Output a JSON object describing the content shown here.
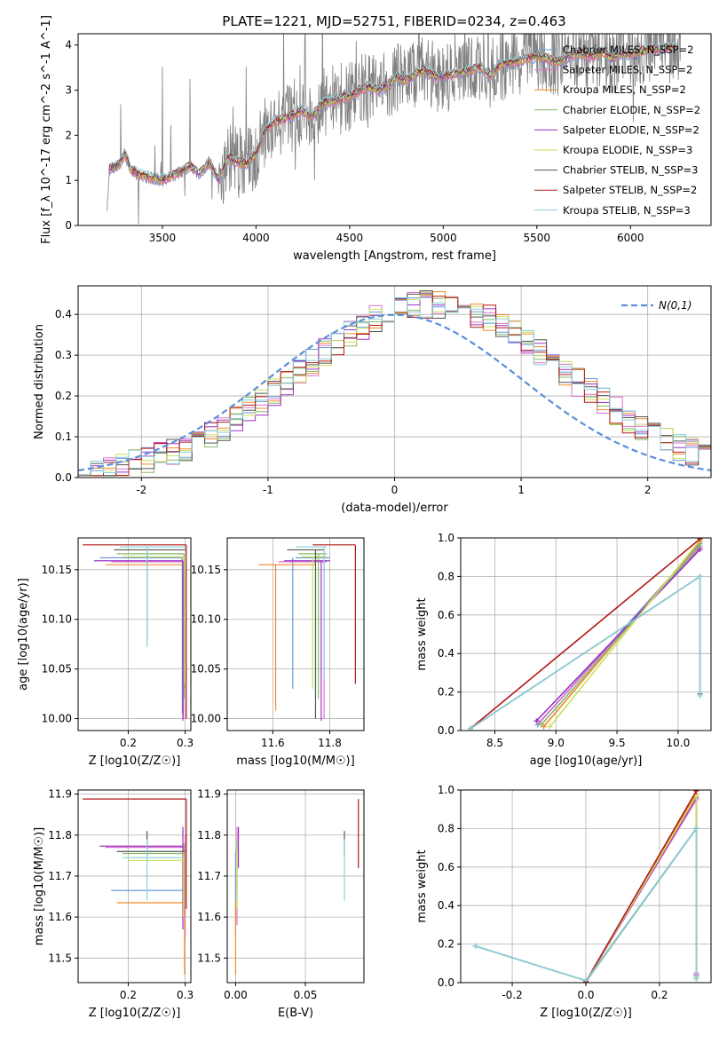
{
  "figure": {
    "title": "PLATE=1221, MJD=52751, FIBERID=0234, z=0.463"
  },
  "chart_data": [
    {
      "id": "spectrum",
      "type": "line",
      "xlabel": "wavelength [Angstrom, rest frame]",
      "ylabel": "Flux [f_λ 10^-17 erg cm^-2 s^-1 A^-1]",
      "xlim": [
        3050,
        6430
      ],
      "ylim": [
        0,
        4.25
      ],
      "xticks": [
        3500,
        4000,
        4500,
        5000,
        5500,
        6000
      ],
      "yticks": [
        0,
        1,
        2,
        3,
        4
      ],
      "grid": false,
      "legend_position": "top-right",
      "series": [
        {
          "name": "Chabrier MILES, N_SSP=2",
          "color": "#6a9ad8"
        },
        {
          "name": "Salpeter MILES, N_SSP=2",
          "color": "#e070c8"
        },
        {
          "name": "Kroupa MILES, N_SSP=2",
          "color": "#f08a2a"
        },
        {
          "name": "Chabrier ELODIE, N_SSP=2",
          "color": "#86b86a"
        },
        {
          "name": "Salpeter ELODIE, N_SSP=2",
          "color": "#9a32c8"
        },
        {
          "name": "Kroupa ELODIE, N_SSP=3",
          "color": "#cbe05a"
        },
        {
          "name": "Chabrier STELIB, N_SSP=3",
          "color": "#555555"
        },
        {
          "name": "Salpeter STELIB, N_SSP=2",
          "color": "#b21a1a"
        },
        {
          "name": "Kroupa STELIB, N_SSP=3",
          "color": "#8ad0d8"
        }
      ],
      "model_continuum": {
        "x": [
          3200,
          3215,
          3230,
          3250,
          3270,
          3300,
          3330,
          3360,
          3400,
          3450,
          3500,
          3550,
          3600,
          3650,
          3700,
          3750,
          3800,
          3850,
          3900,
          3950,
          4000,
          4050,
          4100,
          4150,
          4200,
          4250,
          4300,
          4350,
          4400,
          4450,
          4500,
          4550,
          4600,
          4650,
          4700,
          4750,
          4800,
          4850,
          4900,
          4950,
          5000,
          5050,
          5100,
          5150,
          5200,
          5250,
          5300,
          5350,
          5400,
          5450,
          5500,
          5550,
          5600,
          5650,
          5700,
          5750,
          5800,
          5850,
          5900,
          5950,
          6000,
          6050,
          6100,
          6150,
          6200,
          6250
        ],
        "y": [
          0.0,
          1.2,
          1.3,
          1.3,
          1.35,
          1.6,
          1.25,
          1.15,
          1.1,
          1.05,
          1.0,
          1.1,
          1.2,
          1.3,
          1.15,
          1.4,
          1.0,
          1.5,
          1.4,
          1.35,
          1.6,
          2.1,
          2.3,
          2.35,
          2.45,
          2.55,
          2.4,
          2.7,
          2.75,
          2.8,
          2.85,
          3.0,
          3.05,
          3.0,
          3.1,
          3.3,
          3.2,
          3.35,
          3.45,
          3.3,
          3.3,
          3.35,
          3.4,
          3.45,
          3.5,
          3.3,
          3.55,
          3.6,
          3.65,
          3.7,
          3.75,
          3.7,
          3.6,
          3.7,
          3.8,
          3.8,
          3.75,
          3.85,
          3.7,
          3.8,
          3.8,
          3.85,
          3.9,
          3.9,
          3.95,
          3.95
        ]
      }
    },
    {
      "id": "residual-histogram",
      "type": "histogram",
      "xlabel": "(data-model)/error",
      "ylabel": "Normed distribution",
      "xlim": [
        -2.5,
        2.5
      ],
      "ylim": [
        0,
        0.47
      ],
      "xticks": [
        -2,
        -1,
        0,
        1,
        2
      ],
      "yticks": [
        0.0,
        0.1,
        0.2,
        0.3,
        0.4
      ],
      "grid": true,
      "legend_position": "top-right",
      "reference_curve": {
        "name": "N(0,1)",
        "color": "#5b8fd8",
        "style": "dashed"
      }
    },
    {
      "id": "age-vs-z",
      "type": "errorbar",
      "xlabel": "Z [log10(Z/Z☉)]",
      "ylabel": "age [log10(age/yr)]",
      "xlim": [
        0.112,
        0.31
      ],
      "ylim": [
        9.988,
        10.182
      ],
      "xticks": [
        0.2,
        0.3
      ],
      "yticks": [
        10.0,
        10.05,
        10.1,
        10.15
      ],
      "grid": true
    },
    {
      "id": "age-vs-mass",
      "type": "errorbar",
      "xlabel": "mass [log10(M/M☉)]",
      "ylabel": "",
      "xlim": [
        11.44,
        11.92
      ],
      "ylim": [
        9.988,
        10.182
      ],
      "xticks": [
        11.6,
        11.8
      ],
      "yticks": [
        10.0,
        10.05,
        10.1,
        10.15
      ],
      "grid": true
    },
    {
      "id": "mass-weight-vs-age",
      "type": "line",
      "xlabel": "age [log10(age/yr)]",
      "ylabel": "mass weight",
      "xlim": [
        8.22,
        10.27
      ],
      "ylim": [
        0,
        1
      ],
      "xticks": [
        8.5,
        9.0,
        9.5,
        10.0
      ],
      "yticks": [
        0.0,
        0.2,
        0.4,
        0.6,
        0.8,
        1.0
      ],
      "grid": true
    },
    {
      "id": "mass-vs-z",
      "type": "errorbar",
      "xlabel": "Z [log10(Z/Z☉)]",
      "ylabel": "mass [log10(M/M☉)]",
      "xlim": [
        0.112,
        0.31
      ],
      "ylim": [
        11.44,
        11.91
      ],
      "xticks": [
        0.2,
        0.3
      ],
      "yticks": [
        11.5,
        11.6,
        11.7,
        11.8,
        11.9
      ],
      "grid": true
    },
    {
      "id": "mass-vs-ebv",
      "type": "errorbar",
      "xlabel": "E(B-V)",
      "ylabel": "",
      "xlim": [
        -0.006,
        0.092
      ],
      "ylim": [
        11.44,
        11.91
      ],
      "xticks": [
        0.0,
        0.05
      ],
      "yticks": [
        11.5,
        11.6,
        11.7,
        11.8,
        11.9
      ],
      "grid": true
    },
    {
      "id": "mass-weight-vs-z",
      "type": "line",
      "xlabel": "Z [log10(Z/Z☉)]",
      "ylabel": "mass weight",
      "xlim": [
        -0.34,
        0.34
      ],
      "ylim": [
        0,
        1
      ],
      "xticks": [
        -0.2,
        0.0,
        0.2
      ],
      "yticks": [
        0.0,
        0.2,
        0.4,
        0.6,
        0.8,
        1.0
      ],
      "grid": true
    }
  ]
}
